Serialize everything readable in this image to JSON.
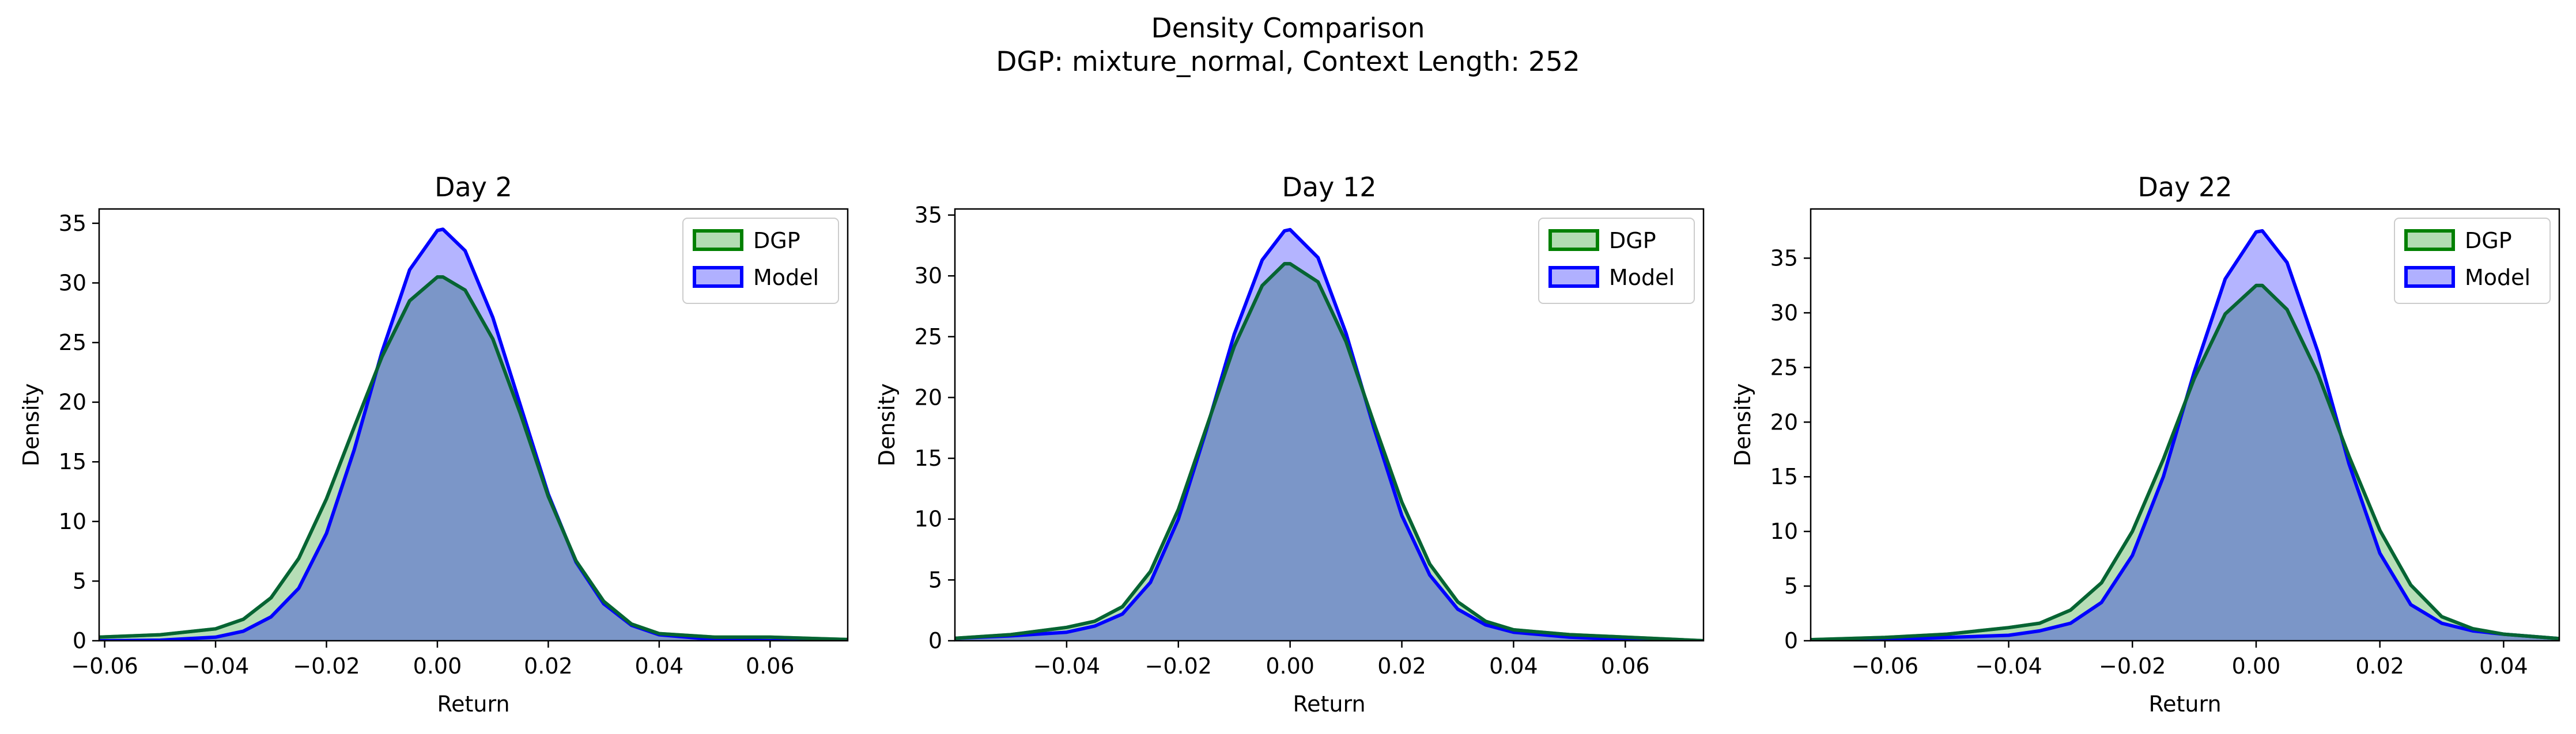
{
  "figure": {
    "title": "Density Comparison",
    "subtitle": "DGP: mixture_normal, Context Length: 252"
  },
  "colors": {
    "dgp_line": "#008000",
    "dgp_fill": "#b2dcb2",
    "model_line": "#0000ff",
    "model_fill": "#b0b0ff",
    "overlap_fill": "#7b96c8"
  },
  "chart_data": [
    {
      "type": "area",
      "title": "Day 2",
      "xlabel": "Return",
      "ylabel": "Density",
      "xlim": [
        -0.061,
        0.074
      ],
      "ylim": [
        0,
        36.2
      ],
      "xticks": [
        -0.06,
        -0.04,
        -0.02,
        0.0,
        0.02,
        0.04,
        0.06
      ],
      "xtick_labels": [
        "−0.06",
        "−0.04",
        "−0.02",
        "0.00",
        "0.02",
        "0.04",
        "0.06"
      ],
      "yticks": [
        0,
        5,
        10,
        15,
        20,
        25,
        30,
        35
      ],
      "legend": {
        "position": "top-right",
        "entries": [
          "DGP",
          "Model"
        ]
      },
      "series": [
        {
          "name": "DGP",
          "x": [
            -0.061,
            -0.05,
            -0.04,
            -0.035,
            -0.03,
            -0.025,
            -0.02,
            -0.015,
            -0.01,
            -0.005,
            0.0,
            0.001,
            0.005,
            0.01,
            0.015,
            0.02,
            0.025,
            0.03,
            0.035,
            0.04,
            0.05,
            0.06,
            0.074
          ],
          "y": [
            0.3,
            0.5,
            1.0,
            1.8,
            3.6,
            6.9,
            11.9,
            17.9,
            23.8,
            28.5,
            30.5,
            30.5,
            29.4,
            25.3,
            19.0,
            12.1,
            6.7,
            3.3,
            1.4,
            0.6,
            0.3,
            0.3,
            0.1
          ]
        },
        {
          "name": "Model",
          "x": [
            -0.061,
            -0.05,
            -0.04,
            -0.035,
            -0.03,
            -0.025,
            -0.02,
            -0.015,
            -0.01,
            -0.005,
            0.0,
            0.001,
            0.005,
            0.01,
            0.015,
            0.02,
            0.025,
            0.03,
            0.035,
            0.04,
            0.05,
            0.06,
            0.074
          ],
          "y": [
            0.0,
            0.05,
            0.3,
            0.8,
            2.0,
            4.4,
            9.0,
            16.0,
            24.2,
            31.1,
            34.4,
            34.5,
            32.7,
            27.1,
            19.7,
            12.3,
            6.6,
            3.1,
            1.3,
            0.5,
            0.1,
            0.0,
            0.0
          ]
        }
      ]
    },
    {
      "type": "area",
      "title": "Day 12",
      "xlabel": "Return",
      "ylabel": "Density",
      "xlim": [
        -0.06,
        0.074
      ],
      "ylim": [
        0,
        35.5
      ],
      "xticks": [
        -0.04,
        -0.02,
        0.0,
        0.02,
        0.04,
        0.06
      ],
      "xtick_labels": [
        "−0.04",
        "−0.02",
        "0.00",
        "0.02",
        "0.04",
        "0.06"
      ],
      "yticks": [
        0,
        5,
        10,
        15,
        20,
        25,
        30,
        35
      ],
      "legend": {
        "position": "top-right",
        "entries": [
          "DGP",
          "Model"
        ]
      },
      "series": [
        {
          "name": "DGP",
          "x": [
            -0.06,
            -0.05,
            -0.04,
            -0.035,
            -0.03,
            -0.025,
            -0.02,
            -0.015,
            -0.01,
            -0.005,
            -0.001,
            0.0,
            0.005,
            0.01,
            0.015,
            0.02,
            0.025,
            0.03,
            0.035,
            0.04,
            0.05,
            0.06,
            0.074
          ],
          "y": [
            0.2,
            0.5,
            1.1,
            1.6,
            2.8,
            5.7,
            10.8,
            17.5,
            24.2,
            29.2,
            31.0,
            31.0,
            29.5,
            24.6,
            17.9,
            11.4,
            6.3,
            3.2,
            1.6,
            0.9,
            0.5,
            0.3,
            0.0
          ]
        },
        {
          "name": "Model",
          "x": [
            -0.06,
            -0.05,
            -0.04,
            -0.035,
            -0.03,
            -0.025,
            -0.02,
            -0.015,
            -0.01,
            -0.005,
            -0.001,
            0.0,
            0.005,
            0.01,
            0.015,
            0.02,
            0.025,
            0.03,
            0.035,
            0.04,
            0.05,
            0.06,
            0.074
          ],
          "y": [
            0.2,
            0.4,
            0.7,
            1.2,
            2.2,
            4.8,
            10.0,
            17.3,
            25.2,
            31.3,
            33.7,
            33.8,
            31.5,
            25.3,
            17.5,
            10.3,
            5.4,
            2.6,
            1.3,
            0.7,
            0.3,
            0.1,
            0.0
          ]
        }
      ]
    },
    {
      "type": "area",
      "title": "Day 22",
      "xlabel": "Return",
      "ylabel": "Density",
      "xlim": [
        -0.072,
        0.049
      ],
      "ylim": [
        0,
        39.5
      ],
      "xticks": [
        -0.06,
        -0.04,
        -0.02,
        0.0,
        0.02,
        0.04
      ],
      "xtick_labels": [
        "−0.06",
        "−0.04",
        "−0.02",
        "0.00",
        "0.02",
        "0.04"
      ],
      "yticks": [
        0,
        5,
        10,
        15,
        20,
        25,
        30,
        35
      ],
      "legend": {
        "position": "top-right",
        "entries": [
          "DGP",
          "Model"
        ]
      },
      "series": [
        {
          "name": "DGP",
          "x": [
            -0.072,
            -0.06,
            -0.05,
            -0.045,
            -0.04,
            -0.035,
            -0.03,
            -0.025,
            -0.02,
            -0.015,
            -0.01,
            -0.005,
            0.0,
            0.001,
            0.005,
            0.01,
            0.015,
            0.02,
            0.025,
            0.03,
            0.035,
            0.04,
            0.049
          ],
          "y": [
            0.1,
            0.3,
            0.6,
            0.9,
            1.2,
            1.6,
            2.8,
            5.3,
            10.0,
            16.6,
            24.0,
            29.9,
            32.5,
            32.5,
            30.3,
            24.4,
            16.9,
            10.1,
            5.1,
            2.2,
            1.1,
            0.6,
            0.2
          ]
        },
        {
          "name": "Model",
          "x": [
            -0.072,
            -0.06,
            -0.05,
            -0.045,
            -0.04,
            -0.035,
            -0.03,
            -0.025,
            -0.02,
            -0.015,
            -0.01,
            -0.005,
            0.0,
            0.001,
            0.005,
            0.01,
            0.015,
            0.02,
            0.025,
            0.03,
            0.035,
            0.04,
            0.049
          ],
          "y": [
            0.0,
            0.1,
            0.3,
            0.4,
            0.5,
            0.9,
            1.6,
            3.5,
            7.8,
            15.0,
            24.6,
            33.1,
            37.4,
            37.5,
            34.6,
            26.4,
            16.2,
            8.0,
            3.3,
            1.6,
            0.9,
            0.6,
            0.2
          ]
        }
      ]
    }
  ]
}
